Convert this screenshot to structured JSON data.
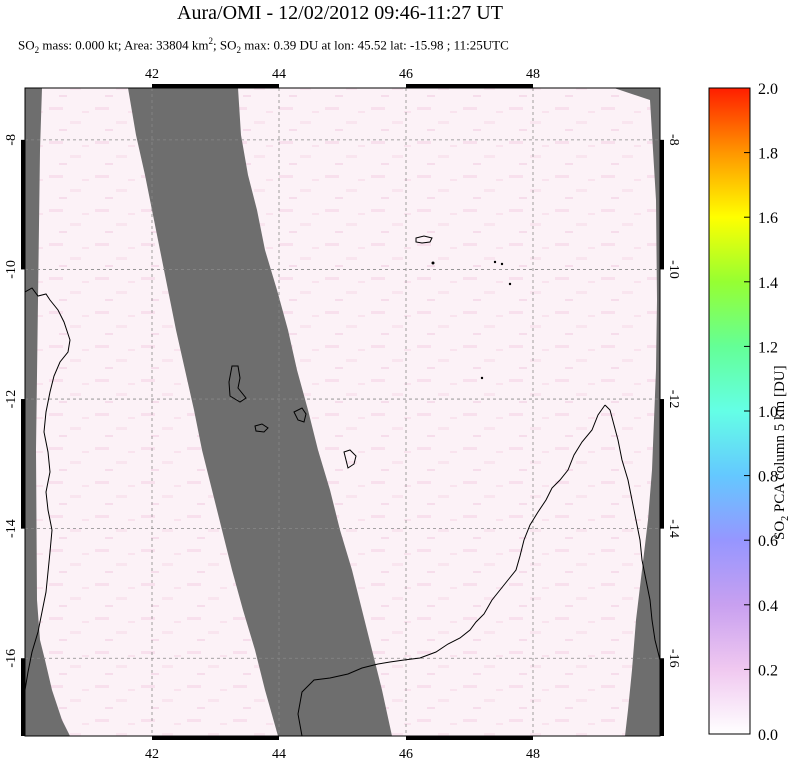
{
  "title": "Aura/OMI - 12/02/2012 09:46-11:27 UT",
  "subtitle": {
    "part1": "SO",
    "sub1": "2",
    "part2": " mass: 0.000 kt; Area: 33804 km",
    "sup1": "2",
    "part3": "; SO",
    "sub2": "2",
    "part4": " max: 0.39 DU at lon: 45.52 lat: -15.98 ; 11:25UTC"
  },
  "colorbar": {
    "label_prefix": "SO",
    "label_sub": "2",
    "label_suffix": " PCA column 5 km [DU]",
    "min": 0.0,
    "max": 2.0,
    "ticks": [
      "0.0",
      "0.2",
      "0.4",
      "0.6",
      "0.8",
      "1.0",
      "1.2",
      "1.4",
      "1.6",
      "1.8",
      "2.0"
    ]
  },
  "chart_data": {
    "type": "heatmap",
    "xlim": [
      40,
      50
    ],
    "ylim": [
      -17.2,
      -7.2
    ],
    "x_ticks": [
      "42",
      "44",
      "46",
      "48"
    ],
    "x_tick_values": [
      42,
      44,
      46,
      48
    ],
    "y_ticks": [
      "-8",
      "-10",
      "-12",
      "-14",
      "-16"
    ],
    "y_tick_values": [
      -8,
      -10,
      -12,
      -14,
      -16
    ],
    "grid": true,
    "no_data_color": "#6e6e6e",
    "low_value_color": "#fbeef4",
    "colorscale": [
      "#ffffff",
      "#f0c8f0",
      "#c8a0f0",
      "#9696ff",
      "#64c8ff",
      "#64ffe6",
      "#64ff96",
      "#96ff32",
      "#ffff00",
      "#ff9600",
      "#ff1e00"
    ],
    "max_value": 0.39,
    "max_location": {
      "lon": 45.52,
      "lat": -15.98
    }
  }
}
